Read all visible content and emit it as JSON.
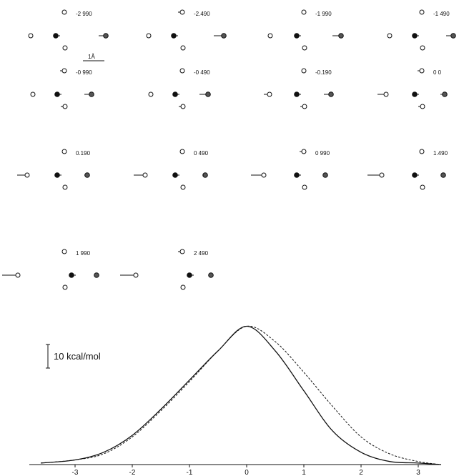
{
  "frames": [
    {
      "label": "-2 990"
    },
    {
      "label": "-2.490"
    },
    {
      "label": "-1 990"
    },
    {
      "label": "-1 490"
    },
    {
      "label": "-0 990"
    },
    {
      "label": "-0 490"
    },
    {
      "label": "-0.190"
    },
    {
      "label": "0 0"
    },
    {
      "label": "0.190"
    },
    {
      "label": "0 490"
    },
    {
      "label": "0 990"
    },
    {
      "label": "1.490"
    },
    {
      "label": "1 990"
    },
    {
      "label": "2 490"
    }
  ],
  "length_scale": {
    "label": "1Å"
  },
  "energy_scale": {
    "label": "10 kcal/mol"
  },
  "chart_data": {
    "type": "line",
    "xlim": [
      -3.8,
      3.4
    ],
    "x_ticks": [
      -3,
      -2,
      -1,
      0,
      1,
      2,
      3
    ],
    "curves": [
      {
        "style": "solid",
        "x": [
          -3.6,
          -3,
          -2.5,
          -2,
          -1.5,
          -1,
          -0.5,
          0,
          0.5,
          1,
          1.5,
          2,
          2.5,
          3,
          3.4
        ],
        "y": [
          0.5,
          1.5,
          4,
          9.5,
          18,
          27.5,
          37,
          45,
          37,
          24,
          11,
          4,
          1,
          0.5,
          0
        ]
      },
      {
        "style": "dashed",
        "x": [
          -3.6,
          -3,
          -2.5,
          -2,
          -1.5,
          -1,
          -0.5,
          0,
          0.5,
          1,
          1.5,
          2,
          2.5,
          3,
          3.4
        ],
        "y": [
          0.5,
          1.5,
          3.5,
          9,
          17.5,
          27,
          37,
          45,
          40,
          30,
          19,
          9,
          3.5,
          1,
          0
        ]
      }
    ]
  }
}
